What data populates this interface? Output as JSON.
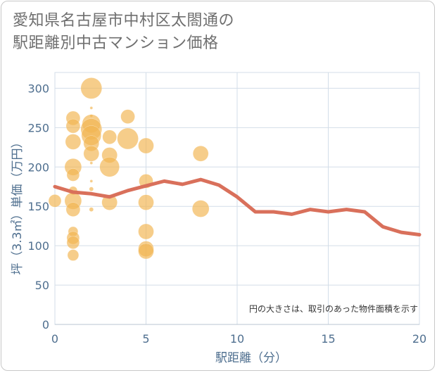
{
  "title": {
    "line1": "愛知県名古屋市中村区太閤通の",
    "line2": "駅距離別中古マンション価格"
  },
  "colors": {
    "bubble": "#f2b553",
    "line": "#d9705b",
    "grid": "#d3dde8",
    "axis_text": "#4f6f8f"
  },
  "chart_data": {
    "type": "scatter",
    "xlabel": "駅距離（分）",
    "ylabel": "坪（3.3㎡）単価（万円）",
    "xlim": [
      0,
      20
    ],
    "ylim": [
      0,
      320
    ],
    "xticks": [
      "0",
      "5",
      "10",
      "15",
      "20"
    ],
    "yticks": [
      "0",
      "50",
      "100",
      "150",
      "200",
      "250",
      "300"
    ],
    "note": "円の大きさは、取引のあった物件面積を示す",
    "bubbles": [
      {
        "x": 0,
        "y": 157,
        "size": 9
      },
      {
        "x": 1,
        "y": 262,
        "size": 10
      },
      {
        "x": 1,
        "y": 252,
        "size": 10
      },
      {
        "x": 1,
        "y": 232,
        "size": 11
      },
      {
        "x": 1,
        "y": 200,
        "size": 12
      },
      {
        "x": 1,
        "y": 190,
        "size": 9
      },
      {
        "x": 1,
        "y": 170,
        "size": 6
      },
      {
        "x": 1,
        "y": 157,
        "size": 12
      },
      {
        "x": 1,
        "y": 146,
        "size": 10
      },
      {
        "x": 1,
        "y": 118,
        "size": 7
      },
      {
        "x": 1,
        "y": 110,
        "size": 9
      },
      {
        "x": 1,
        "y": 104,
        "size": 9
      },
      {
        "x": 1,
        "y": 88,
        "size": 8
      },
      {
        "x": 2,
        "y": 300,
        "size": 15
      },
      {
        "x": 2,
        "y": 275,
        "size": 2
      },
      {
        "x": 2,
        "y": 265,
        "size": 2
      },
      {
        "x": 2,
        "y": 255,
        "size": 13
      },
      {
        "x": 2,
        "y": 248,
        "size": 15
      },
      {
        "x": 2,
        "y": 240,
        "size": 14
      },
      {
        "x": 2,
        "y": 230,
        "size": 11
      },
      {
        "x": 2,
        "y": 217,
        "size": 11
      },
      {
        "x": 2,
        "y": 205,
        "size": 2
      },
      {
        "x": 2,
        "y": 182,
        "size": 2
      },
      {
        "x": 2,
        "y": 172,
        "size": 3
      },
      {
        "x": 2,
        "y": 146,
        "size": 3
      },
      {
        "x": 3,
        "y": 238,
        "size": 10
      },
      {
        "x": 3,
        "y": 215,
        "size": 11
      },
      {
        "x": 3,
        "y": 200,
        "size": 14
      },
      {
        "x": 3,
        "y": 155,
        "size": 11
      },
      {
        "x": 4,
        "y": 264,
        "size": 10
      },
      {
        "x": 4,
        "y": 236,
        "size": 15
      },
      {
        "x": 5,
        "y": 227,
        "size": 11
      },
      {
        "x": 5,
        "y": 182,
        "size": 10
      },
      {
        "x": 5,
        "y": 155,
        "size": 11
      },
      {
        "x": 5,
        "y": 118,
        "size": 11
      },
      {
        "x": 5,
        "y": 96,
        "size": 11
      },
      {
        "x": 5,
        "y": 93,
        "size": 11
      },
      {
        "x": 8,
        "y": 217,
        "size": 11
      },
      {
        "x": 8,
        "y": 147,
        "size": 12
      }
    ],
    "trend": {
      "x": [
        0,
        1,
        2,
        3,
        4,
        5,
        6,
        7,
        8,
        9,
        10,
        11,
        12,
        13,
        14,
        15,
        16,
        17,
        18,
        19,
        20
      ],
      "y": [
        175,
        168,
        166,
        162,
        170,
        176,
        182,
        178,
        184,
        177,
        162,
        143,
        143,
        140,
        146,
        143,
        146,
        143,
        124,
        117,
        114
      ]
    }
  }
}
